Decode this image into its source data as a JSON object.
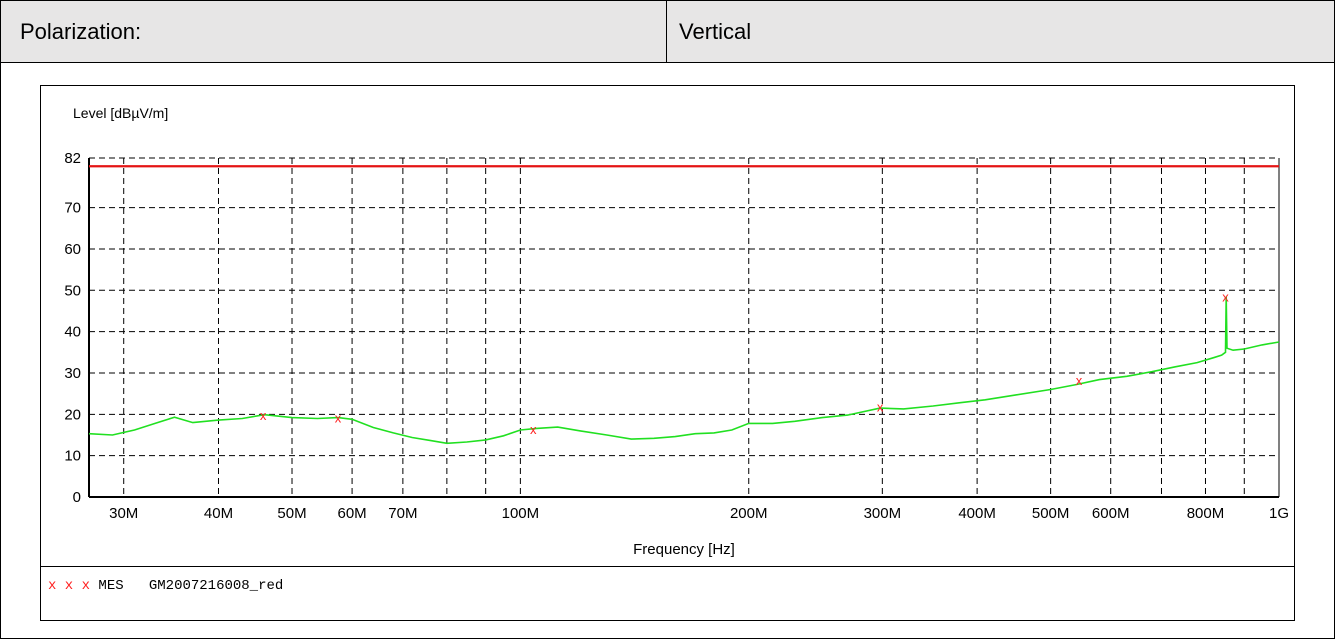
{
  "header": {
    "label": "Polarization:",
    "value": "Vertical"
  },
  "legend": {
    "symbols": "x x x",
    "trace": "MES",
    "name": "GM2007216008_red"
  },
  "colors": {
    "trace": "#21e021",
    "limit": "#e41414",
    "marker": "#ff2020"
  },
  "chart_data": {
    "type": "line",
    "title": "",
    "ylabel": "Level [dBµV/m]",
    "xlabel": "Frequency [Hz]",
    "x_scale": "log",
    "xlim": [
      27000000,
      1000000000
    ],
    "ylim": [
      0,
      82
    ],
    "grid": true,
    "x_ticks": [
      {
        "v": 30000000,
        "label": "30M"
      },
      {
        "v": 40000000,
        "label": "40M"
      },
      {
        "v": 50000000,
        "label": "50M"
      },
      {
        "v": 60000000,
        "label": "60M"
      },
      {
        "v": 70000000,
        "label": "70M"
      },
      {
        "v": 100000000,
        "label": "100M"
      },
      {
        "v": 200000000,
        "label": "200M"
      },
      {
        "v": 300000000,
        "label": "300M"
      },
      {
        "v": 400000000,
        "label": "400M"
      },
      {
        "v": 500000000,
        "label": "500M"
      },
      {
        "v": 600000000,
        "label": "600M"
      },
      {
        "v": 800000000,
        "label": "800M"
      },
      {
        "v": 1000000000,
        "label": "1G"
      }
    ],
    "x_grid": [
      27000000,
      30000000,
      40000000,
      50000000,
      60000000,
      70000000,
      80000000,
      90000000,
      100000000,
      200000000,
      300000000,
      400000000,
      500000000,
      600000000,
      700000000,
      800000000,
      900000000,
      1000000000
    ],
    "y_ticks": [
      0,
      10,
      20,
      30,
      40,
      50,
      60,
      70,
      82
    ],
    "y_grid": [
      10,
      20,
      30,
      40,
      50,
      60,
      70,
      80,
      82
    ],
    "series": [
      {
        "name": "MES",
        "x": [
          27000000,
          29000000,
          31000000,
          33000000,
          35000000,
          37000000,
          40000000,
          43000000,
          46000000,
          50000000,
          54000000,
          57500000,
          60000000,
          64000000,
          68000000,
          72000000,
          76000000,
          80000000,
          85000000,
          90000000,
          95000000,
          100000000,
          105000000,
          112000000,
          120000000,
          130000000,
          140000000,
          150000000,
          160000000,
          170000000,
          180000000,
          190000000,
          200000000,
          215000000,
          230000000,
          250000000,
          270000000,
          298000000,
          320000000,
          350000000,
          380000000,
          410000000,
          450000000,
          500000000,
          540000000,
          580000000,
          630000000,
          680000000,
          730000000,
          780000000,
          820000000,
          840000000,
          850000000,
          852000000,
          854000000,
          870000000,
          900000000,
          950000000,
          1000000000
        ],
        "y": [
          15.3,
          15,
          16.2,
          17.8,
          19.3,
          18,
          18.6,
          19.0,
          19.9,
          19.2,
          19.0,
          19.2,
          18.8,
          16.8,
          15.5,
          14.4,
          13.7,
          13.0,
          13.3,
          13.8,
          14.8,
          16.2,
          16.6,
          16.9,
          16.0,
          15.0,
          14.0,
          14.2,
          14.6,
          15.3,
          15.5,
          16.2,
          17.8,
          17.8,
          18.3,
          19.2,
          19.8,
          21.5,
          21.3,
          22.0,
          22.8,
          23.5,
          24.7,
          26.0,
          27.2,
          28.4,
          29.2,
          30.3,
          31.5,
          32.5,
          33.7,
          34.3,
          35.0,
          48.5,
          36.0,
          35.5,
          35.8,
          36.8,
          37.5
        ]
      },
      {
        "name": "Limit",
        "x": [
          27000000,
          1000000000
        ],
        "y": [
          80,
          80
        ]
      }
    ],
    "markers": [
      {
        "x": 45800000,
        "y": 19.8
      },
      {
        "x": 57500000,
        "y": 19.2
      },
      {
        "x": 104000000,
        "y": 16.4
      },
      {
        "x": 298000000,
        "y": 21.9
      },
      {
        "x": 545000000,
        "y": 28.3
      },
      {
        "x": 850000000,
        "y": 48.5
      }
    ]
  }
}
